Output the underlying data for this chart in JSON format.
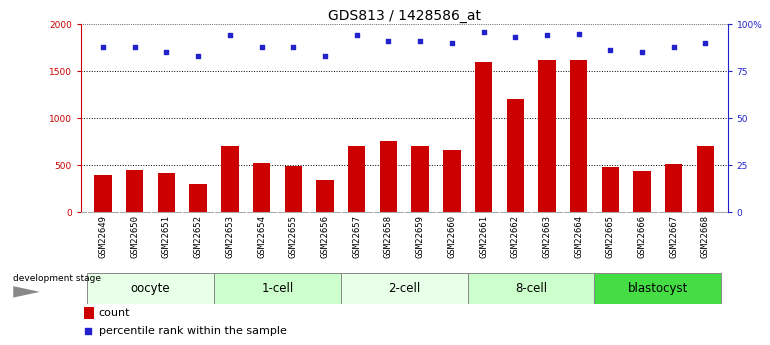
{
  "title": "GDS813 / 1428586_at",
  "samples": [
    "GSM22649",
    "GSM22650",
    "GSM22651",
    "GSM22652",
    "GSM22653",
    "GSM22654",
    "GSM22655",
    "GSM22656",
    "GSM22657",
    "GSM22658",
    "GSM22659",
    "GSM22660",
    "GSM22661",
    "GSM22662",
    "GSM22663",
    "GSM22664",
    "GSM22665",
    "GSM22666",
    "GSM22667",
    "GSM22668"
  ],
  "counts": [
    400,
    450,
    420,
    300,
    700,
    520,
    490,
    340,
    700,
    760,
    700,
    660,
    1600,
    1200,
    1620,
    1620,
    480,
    440,
    510,
    700
  ],
  "percentiles": [
    88,
    88,
    85,
    83,
    94,
    88,
    88,
    83,
    94,
    91,
    91,
    90,
    96,
    93,
    94,
    95,
    86,
    85,
    88,
    90
  ],
  "groups": [
    {
      "label": "oocyte",
      "start": 0,
      "end": 4
    },
    {
      "label": "1-cell",
      "start": 4,
      "end": 8
    },
    {
      "label": "2-cell",
      "start": 8,
      "end": 12
    },
    {
      "label": "8-cell",
      "start": 12,
      "end": 16
    },
    {
      "label": "blastocyst",
      "start": 16,
      "end": 20
    }
  ],
  "group_colors": [
    "#e8ffe8",
    "#ccffcc",
    "#e8ffe8",
    "#ccffcc",
    "#44dd44"
  ],
  "bar_color": "#cc0000",
  "dot_color": "#2222cc",
  "left_ylim": [
    0,
    2000
  ],
  "right_ylim": [
    0,
    100
  ],
  "left_yticks": [
    0,
    500,
    1000,
    1500,
    2000
  ],
  "right_yticks": [
    0,
    25,
    50,
    75,
    100
  ],
  "right_yticklabels": [
    "0",
    "25",
    "50",
    "75",
    "100%"
  ],
  "left_ycolor": "#cc0000",
  "right_ycolor": "#2222cc",
  "background_color": "#ffffff",
  "grid_color": "#000000",
  "title_fontsize": 10,
  "tick_fontsize": 6.5,
  "label_fontsize": 8,
  "group_label_fontsize": 8.5,
  "dev_stage_label": "development stage",
  "legend_count": "count",
  "legend_percentile": "percentile rank within the sample",
  "xtick_bg": "#c8c8c8"
}
